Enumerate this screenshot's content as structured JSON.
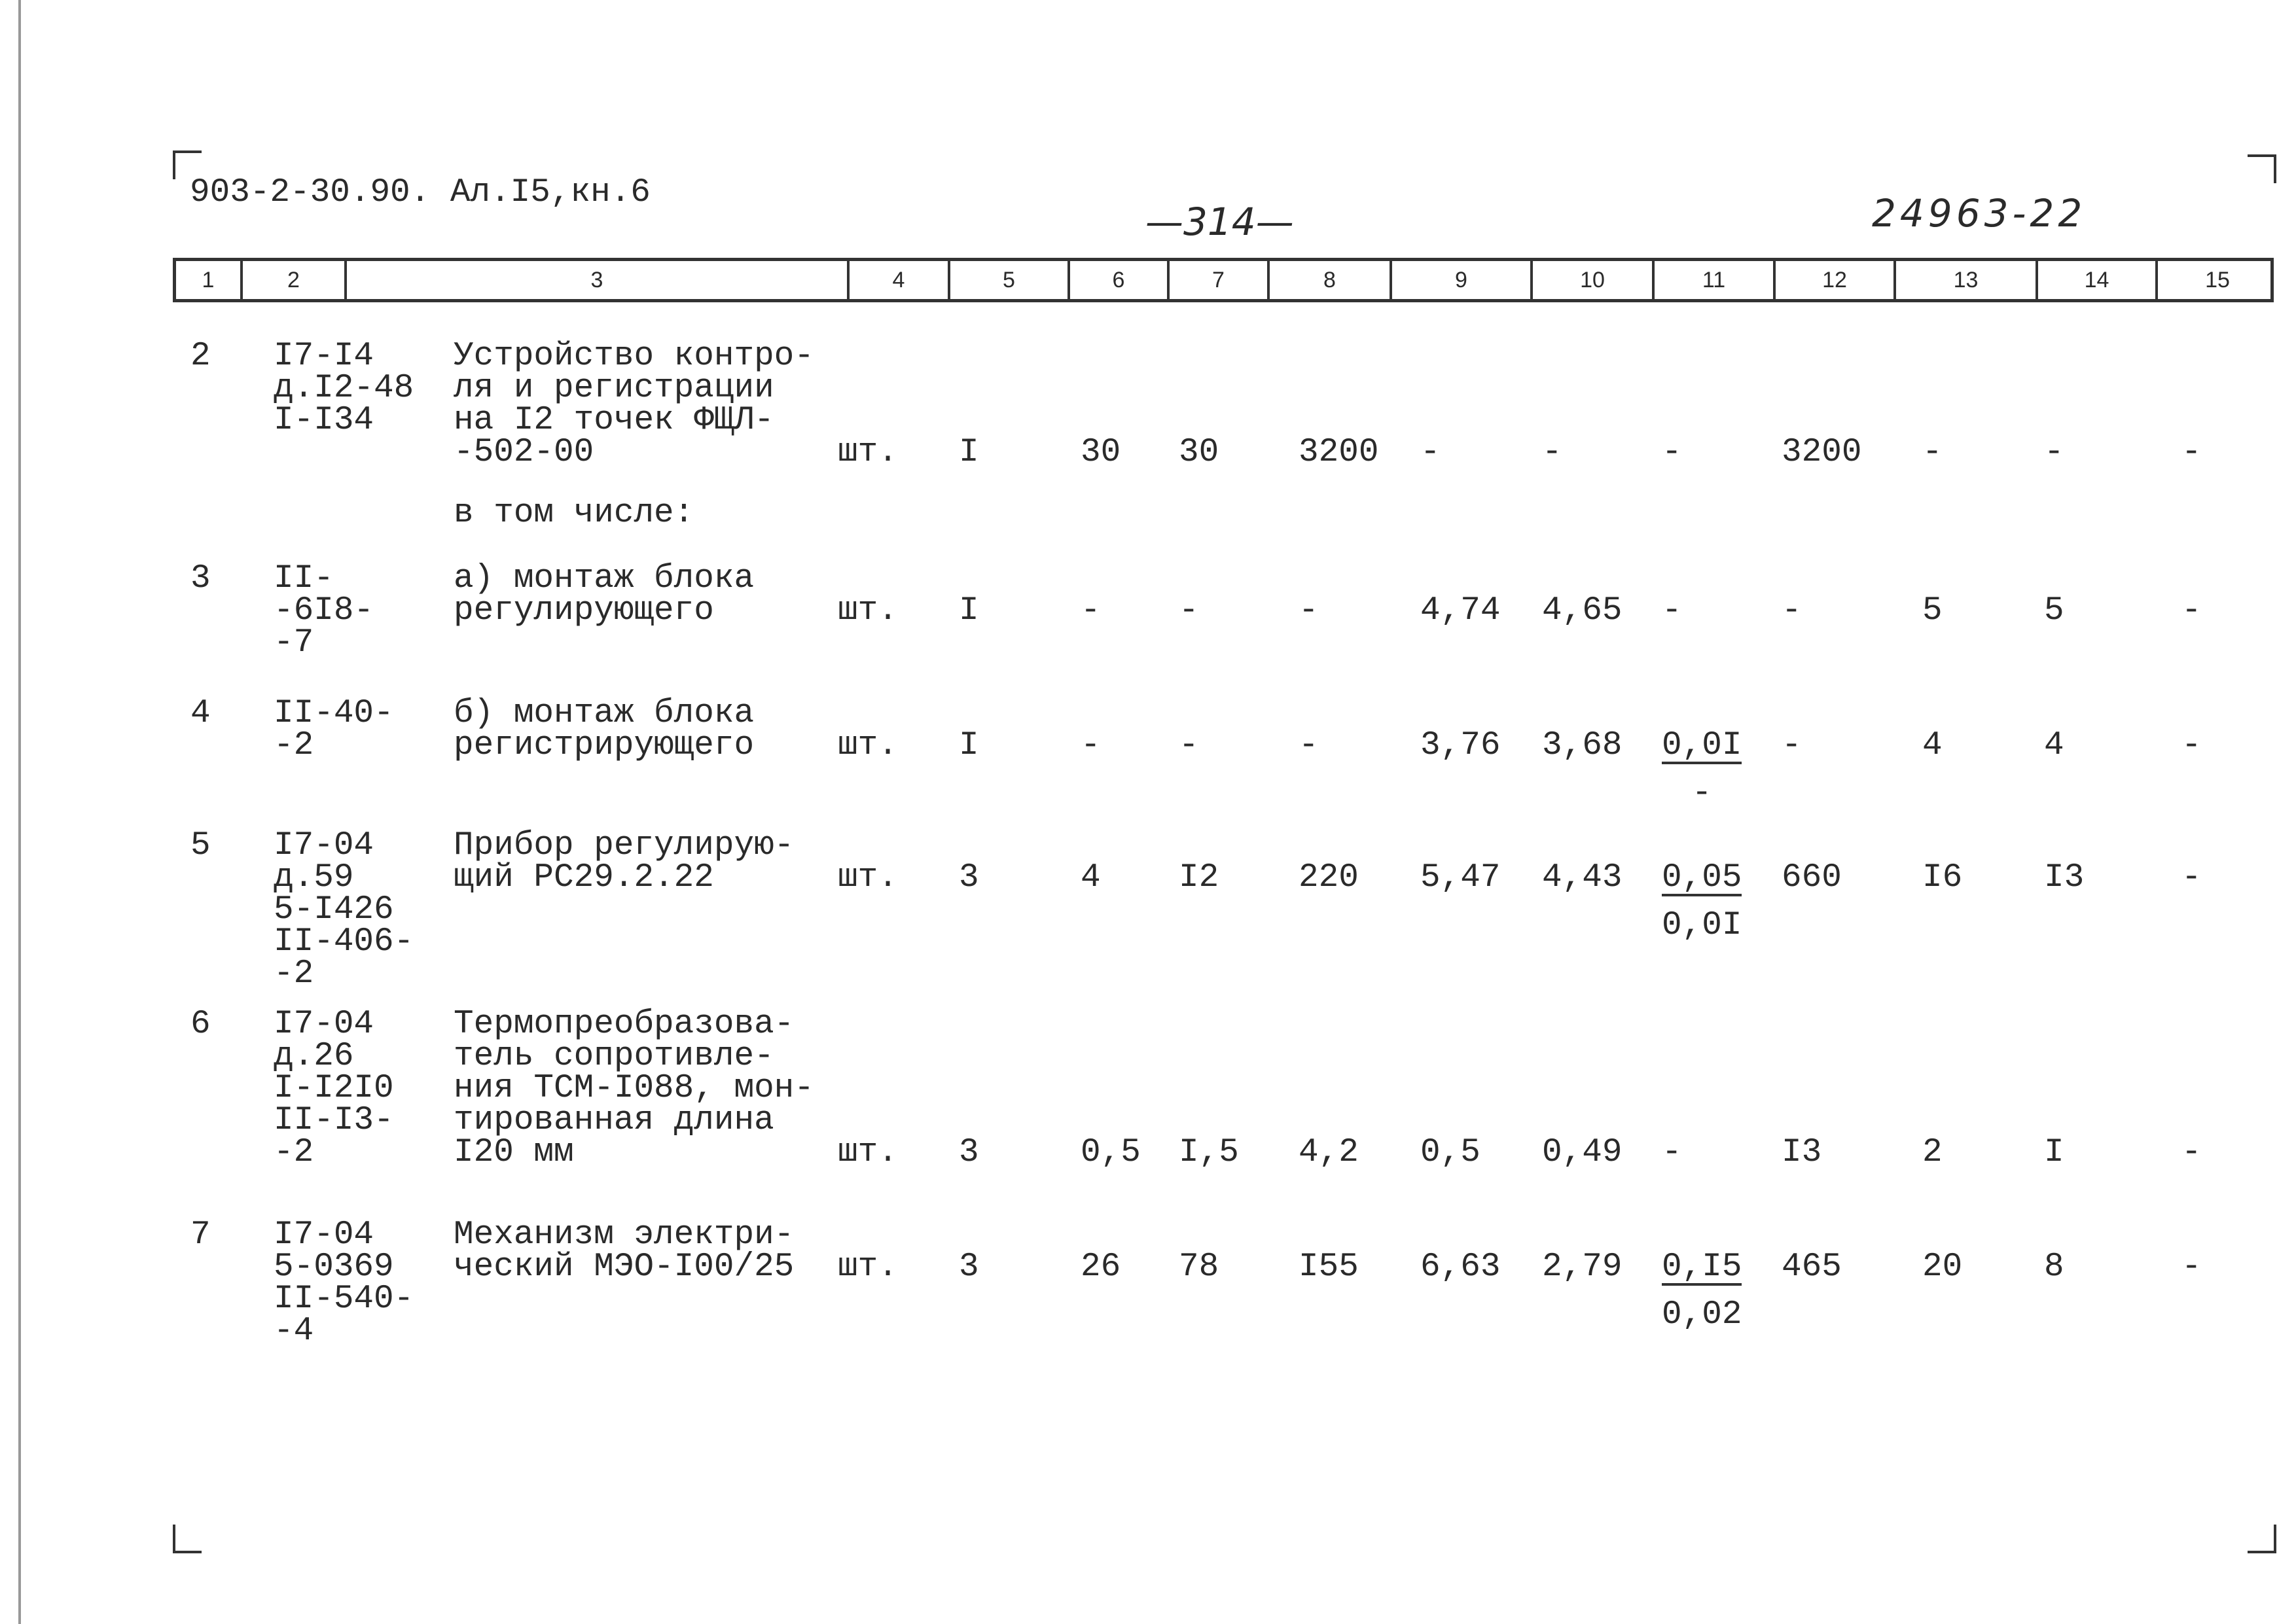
{
  "header": {
    "doc_code": "903-2-30.90. Ал.I5,кн.6",
    "page_number": "—314—",
    "inventory_number": "24963-22"
  },
  "columns": [
    "1",
    "2",
    "3",
    "4",
    "5",
    "6",
    "7",
    "8",
    "9",
    "10",
    "11",
    "12",
    "13",
    "14",
    "15"
  ],
  "subcaption": "в том числе:",
  "rows": [
    {
      "c1": "2",
      "c2": "I7-I4\nд.I2-48\nI-I34",
      "c3": "Устройство контро-\nля и регистрации\nна I2 точек ФЩЛ-\n-502-00",
      "c4": "шт.",
      "c5": "I",
      "c6": "30",
      "c7": "30",
      "c8": "3200",
      "c9": "-",
      "c10": "-",
      "c11": {
        "top": "-",
        "bottom": ""
      },
      "c12": "3200",
      "c13": "-",
      "c14": "-",
      "c15": "-"
    },
    {
      "c1": "3",
      "c2": "II-\n-6I8-\n-7",
      "c3": "а) монтаж блока\nрегулирующего",
      "c4": "шт.",
      "c5": "I",
      "c6": "-",
      "c7": "-",
      "c8": "-",
      "c9": "4,74",
      "c10": "4,65",
      "c11": {
        "top": "-",
        "bottom": ""
      },
      "c12": "-",
      "c13": "5",
      "c14": "5",
      "c15": "-"
    },
    {
      "c1": "4",
      "c2": "II-40-\n-2",
      "c3": "б) монтаж блока\nрегистрирующего",
      "c4": "шт.",
      "c5": "I",
      "c6": "-",
      "c7": "-",
      "c8": "-",
      "c9": "3,76",
      "c10": "3,68",
      "c11": {
        "top": "0,0I",
        "bottom": "-"
      },
      "c12": "-",
      "c13": "4",
      "c14": "4",
      "c15": "-"
    },
    {
      "c1": "5",
      "c2": "I7-04\nд.59\n5-I426\nII-406-\n-2",
      "c3": "Прибор регулирую-\nщий РС29.2.22",
      "c4": "шт.",
      "c5": "3",
      "c6": "4",
      "c7": "I2",
      "c8": "220",
      "c9": "5,47",
      "c10": "4,43",
      "c11": {
        "top": "0,05",
        "bottom": "0,0I"
      },
      "c12": "660",
      "c13": "I6",
      "c14": "I3",
      "c15": "-"
    },
    {
      "c1": "6",
      "c2": "I7-04\nд.26\nI-I2I0\nII-I3-\n-2",
      "c3": "Термопреобразова-\nтель сопротивле-\nния ТСМ-I088, мон-\nтированная длина\nI20 мм",
      "c4": "шт.",
      "c5": "3",
      "c6": "0,5",
      "c7": "I,5",
      "c8": "4,2",
      "c9": "0,5",
      "c10": "0,49",
      "c11": {
        "top": "-",
        "bottom": ""
      },
      "c12": "I3",
      "c13": "2",
      "c14": "I",
      "c15": "-"
    },
    {
      "c1": "7",
      "c2": "I7-04\n5-0369\nII-540-\n-4",
      "c3": "Механизм электри-\nческий МЭО-I00/25",
      "c4": "шт.",
      "c5": "3",
      "c6": "26",
      "c7": "78",
      "c8": "I55",
      "c9": "6,63",
      "c10": "2,79",
      "c11": {
        "top": "0,I5",
        "bottom": "0,02"
      },
      "c12": "465",
      "c13": "20",
      "c14": "8",
      "c15": "-"
    }
  ]
}
